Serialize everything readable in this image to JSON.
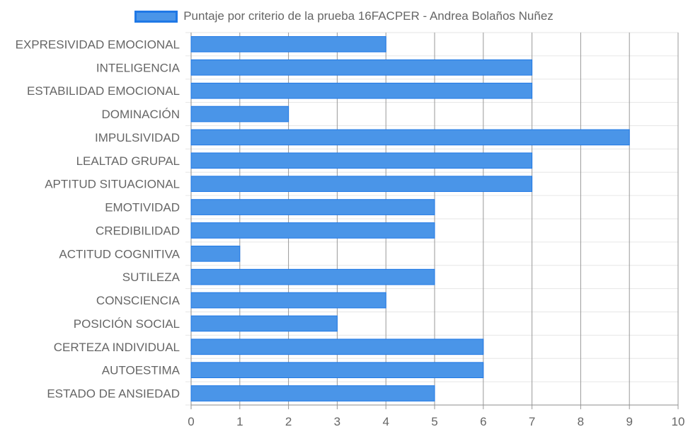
{
  "colors": {
    "bar_fill": "#4a95e8",
    "bar_stroke": "#1f78e6",
    "grid": "#e6e6e6",
    "grid_major": "#8c8c8c",
    "axis_text": "#666666"
  },
  "chart_data": {
    "type": "bar",
    "orientation": "horizontal",
    "legend": "top-center",
    "categories": [
      "EXPRESIVIDAD EMOCIONAL",
      "INTELIGENCIA",
      "ESTABILIDAD EMOCIONAL",
      "DOMINACIÓN",
      "IMPULSIVIDAD",
      "LEALTAD GRUPAL",
      "APTITUD SITUACIONAL",
      "EMOTIVIDAD",
      "CREDIBILIDAD",
      "ACTITUD COGNITIVA",
      "SUTILEZA",
      "CONSCIENCIA",
      "POSICIÓN SOCIAL",
      "CERTEZA INDIVIDUAL",
      "AUTOESTIMA",
      "ESTADO DE ANSIEDAD"
    ],
    "series": [
      {
        "name": "Puntaje por criterio de la prueba 16FACPER - Andrea Bolaños Nuñez",
        "values": [
          4,
          7,
          7,
          2,
          9,
          7,
          7,
          5,
          5,
          1,
          5,
          4,
          3,
          6,
          6,
          5
        ]
      }
    ],
    "xlim": [
      0,
      10
    ],
    "xticks": [
      "0",
      "1",
      "2",
      "3",
      "4",
      "5",
      "6",
      "7",
      "8",
      "9",
      "10"
    ],
    "grid": true
  }
}
